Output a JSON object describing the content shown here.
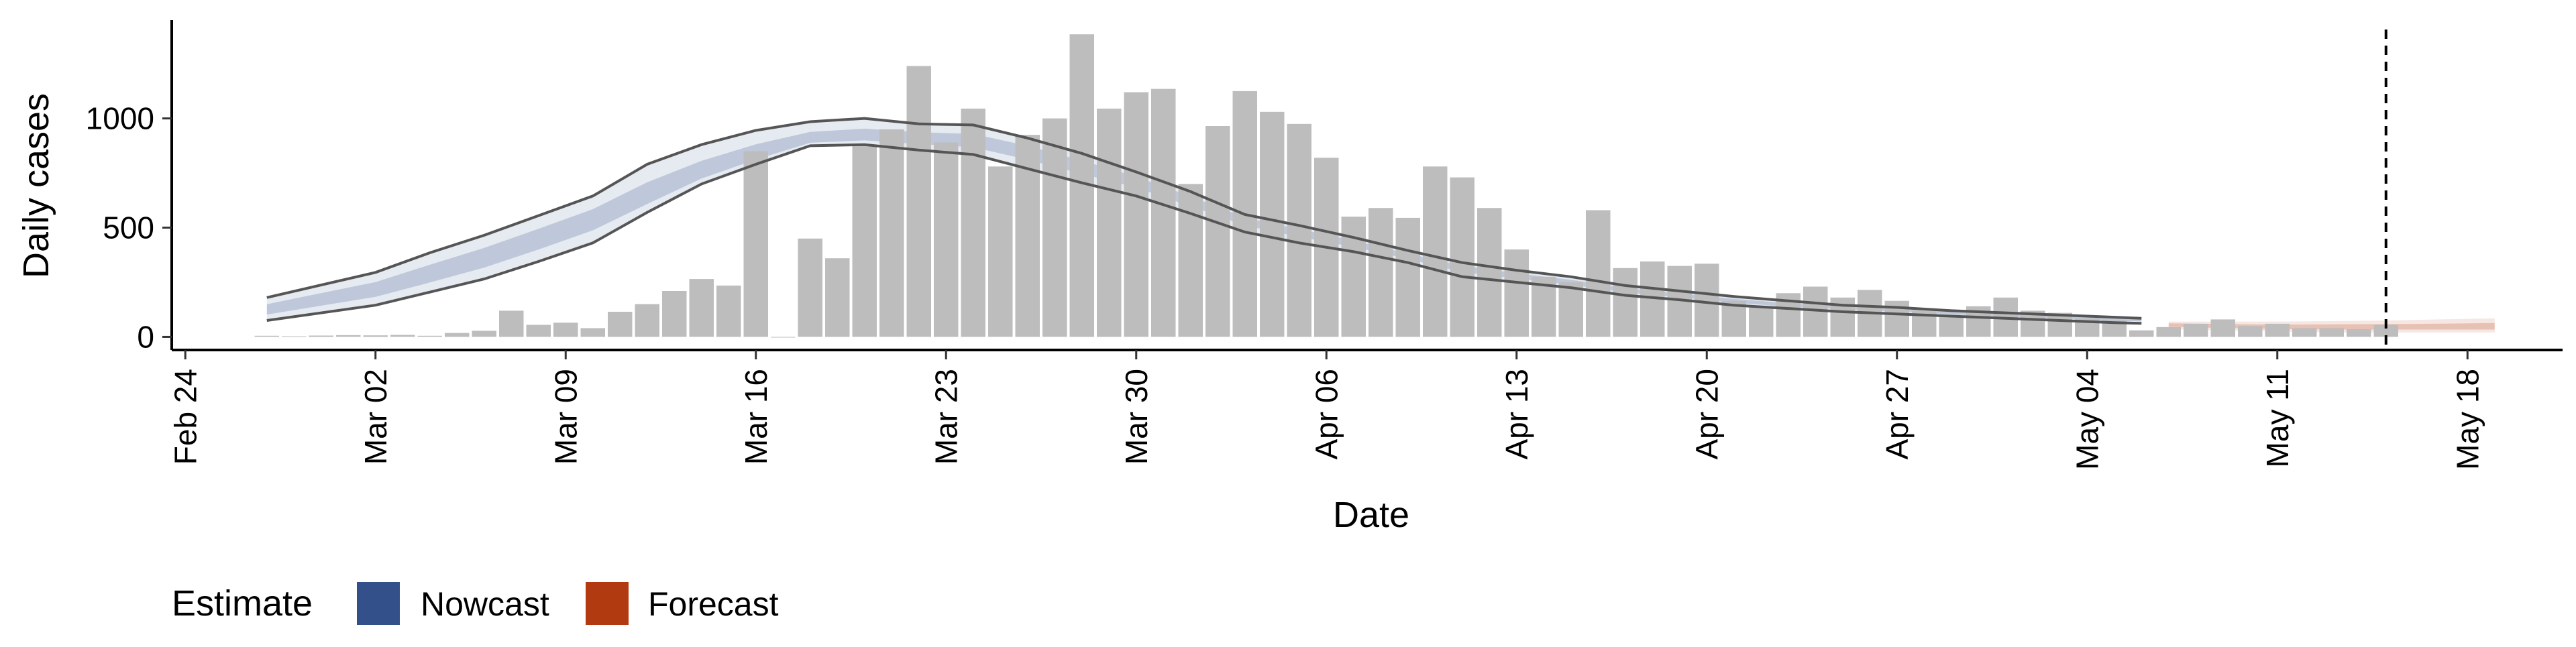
{
  "chart_data": {
    "type": "bar",
    "xlabel": "Date",
    "ylabel": "Daily cases",
    "ylim": [
      -60,
      1450
    ],
    "y_ticks": [
      0,
      500,
      1000
    ],
    "x_ticks": [
      "Feb 24",
      "Mar 02",
      "Mar 09",
      "Mar 16",
      "Mar 23",
      "Mar 30",
      "Apr 06",
      "Apr 13",
      "Apr 20",
      "Apr 27",
      "May 04",
      "May 11",
      "May 18"
    ],
    "x_range_days_from_feb24": [
      -0.5,
      87.5
    ],
    "date_origin": "Feb 24",
    "vertical_marker_date": "May 15",
    "legend": {
      "title": "Estimate",
      "placement": "bottom",
      "items": [
        {
          "label": "Nowcast",
          "color": "#34508a"
        },
        {
          "label": "Forecast",
          "color": "#b23a10"
        }
      ]
    },
    "bar_color": "#bdbdbd",
    "bars": [
      {
        "date": "Feb 27",
        "value": 5
      },
      {
        "date": "Feb 28",
        "value": 3
      },
      {
        "date": "Feb 29",
        "value": 6
      },
      {
        "date": "Mar 01",
        "value": 8
      },
      {
        "date": "Mar 02",
        "value": 7
      },
      {
        "date": "Mar 03",
        "value": 9
      },
      {
        "date": "Mar 04",
        "value": 5
      },
      {
        "date": "Mar 05",
        "value": 18
      },
      {
        "date": "Mar 06",
        "value": 28
      },
      {
        "date": "Mar 07",
        "value": 120
      },
      {
        "date": "Mar 08",
        "value": 55
      },
      {
        "date": "Mar 09",
        "value": 65
      },
      {
        "date": "Mar 10",
        "value": 40
      },
      {
        "date": "Mar 11",
        "value": 115
      },
      {
        "date": "Mar 12",
        "value": 150
      },
      {
        "date": "Mar 13",
        "value": 210
      },
      {
        "date": "Mar 14",
        "value": 265
      },
      {
        "date": "Mar 15",
        "value": 235
      },
      {
        "date": "Mar 16",
        "value": 850
      },
      {
        "date": "Mar 17",
        "value": 0
      },
      {
        "date": "Mar 18",
        "value": 450
      },
      {
        "date": "Mar 19",
        "value": 360
      },
      {
        "date": "Mar 20",
        "value": 880
      },
      {
        "date": "Mar 21",
        "value": 950
      },
      {
        "date": "Mar 22",
        "value": 1240
      },
      {
        "date": "Mar 23",
        "value": 890
      },
      {
        "date": "Mar 24",
        "value": 1045
      },
      {
        "date": "Mar 25",
        "value": 780
      },
      {
        "date": "Mar 26",
        "value": 925
      },
      {
        "date": "Mar 27",
        "value": 1000
      },
      {
        "date": "Mar 28",
        "value": 1385
      },
      {
        "date": "Mar 29",
        "value": 1045
      },
      {
        "date": "Mar 30",
        "value": 1120
      },
      {
        "date": "Mar 31",
        "value": 1135
      },
      {
        "date": "Apr 01",
        "value": 700
      },
      {
        "date": "Apr 02",
        "value": 965
      },
      {
        "date": "Apr 03",
        "value": 1125
      },
      {
        "date": "Apr 04",
        "value": 1030
      },
      {
        "date": "Apr 05",
        "value": 975
      },
      {
        "date": "Apr 06",
        "value": 820
      },
      {
        "date": "Apr 07",
        "value": 550
      },
      {
        "date": "Apr 08",
        "value": 590
      },
      {
        "date": "Apr 09",
        "value": 545
      },
      {
        "date": "Apr 10",
        "value": 780
      },
      {
        "date": "Apr 11",
        "value": 730
      },
      {
        "date": "Apr 12",
        "value": 590
      },
      {
        "date": "Apr 13",
        "value": 400
      },
      {
        "date": "Apr 14",
        "value": 275
      },
      {
        "date": "Apr 15",
        "value": 250
      },
      {
        "date": "Apr 16",
        "value": 580
      },
      {
        "date": "Apr 17",
        "value": 315
      },
      {
        "date": "Apr 18",
        "value": 345
      },
      {
        "date": "Apr 19",
        "value": 325
      },
      {
        "date": "Apr 20",
        "value": 335
      },
      {
        "date": "Apr 21",
        "value": 165
      },
      {
        "date": "Apr 22",
        "value": 135
      },
      {
        "date": "Apr 23",
        "value": 200
      },
      {
        "date": "Apr 24",
        "value": 230
      },
      {
        "date": "Apr 25",
        "value": 180
      },
      {
        "date": "Apr 26",
        "value": 215
      },
      {
        "date": "Apr 27",
        "value": 165
      },
      {
        "date": "Apr 28",
        "value": 120
      },
      {
        "date": "Apr 29",
        "value": 95
      },
      {
        "date": "Apr 30",
        "value": 140
      },
      {
        "date": "May 01",
        "value": 180
      },
      {
        "date": "May 02",
        "value": 120
      },
      {
        "date": "May 03",
        "value": 110
      },
      {
        "date": "May 04",
        "value": 85
      },
      {
        "date": "May 05",
        "value": 75
      },
      {
        "date": "May 06",
        "value": 30
      },
      {
        "date": "May 07",
        "value": 45
      },
      {
        "date": "May 08",
        "value": 60
      },
      {
        "date": "May 09",
        "value": 80
      },
      {
        "date": "May 10",
        "value": 50
      },
      {
        "date": "May 11",
        "value": 60
      },
      {
        "date": "May 12",
        "value": 40
      },
      {
        "date": "May 13",
        "value": 40
      },
      {
        "date": "May 14",
        "value": 35
      },
      {
        "date": "May 15",
        "value": 55
      }
    ],
    "series": [
      {
        "name": "Nowcast",
        "color": "#34508a",
        "dates": [
          "Feb 27",
          "Mar 02",
          "Mar 04",
          "Mar 06",
          "Mar 08",
          "Mar 10",
          "Mar 12",
          "Mar 14",
          "Mar 16",
          "Mar 18",
          "Mar 20",
          "Mar 22",
          "Mar 24",
          "Mar 26",
          "Mar 28",
          "Mar 30",
          "Apr 01",
          "Apr 03",
          "Apr 05",
          "Apr 07",
          "Apr 09",
          "Apr 11",
          "Apr 13",
          "Apr 15",
          "Apr 17",
          "Apr 19",
          "Apr 21",
          "Apr 23",
          "Apr 25",
          "Apr 27",
          "Apr 29",
          "May 01",
          "May 03",
          "May 05",
          "May 06"
        ],
        "median": [
          125,
          215,
          285,
          360,
          445,
          535,
          640,
          745,
          830,
          900,
          915,
          905,
          895,
          845,
          780,
          715,
          625,
          535,
          480,
          430,
          370,
          315,
          280,
          250,
          215,
          190,
          165,
          145,
          135,
          125,
          110,
          100,
          90,
          80,
          78
        ],
        "upper_90": [
          180,
          295,
          385,
          465,
          555,
          645,
          790,
          880,
          945,
          985,
          1000,
          975,
          970,
          910,
          840,
          755,
          665,
          560,
          510,
          455,
          395,
          340,
          305,
          275,
          235,
          210,
          185,
          165,
          145,
          135,
          120,
          110,
          100,
          90,
          85
        ],
        "lower_90": [
          75,
          145,
          205,
          265,
          345,
          430,
          570,
          700,
          790,
          875,
          880,
          855,
          835,
          770,
          705,
          645,
          565,
          480,
          430,
          390,
          340,
          275,
          250,
          225,
          190,
          170,
          145,
          130,
          115,
          105,
          95,
          85,
          75,
          65,
          62
        ]
      },
      {
        "name": "Forecast",
        "color": "#b23a10",
        "dates": [
          "May 07",
          "May 09",
          "May 11",
          "May 13",
          "May 15",
          "May 17",
          "May 19"
        ],
        "median": [
          55,
          50,
          45,
          45,
          45,
          45,
          45
        ],
        "upper_90": [
          70,
          70,
          70,
          72,
          75,
          80,
          85
        ],
        "lower_90": [
          35,
          30,
          25,
          20,
          20,
          20,
          20
        ]
      }
    ]
  }
}
